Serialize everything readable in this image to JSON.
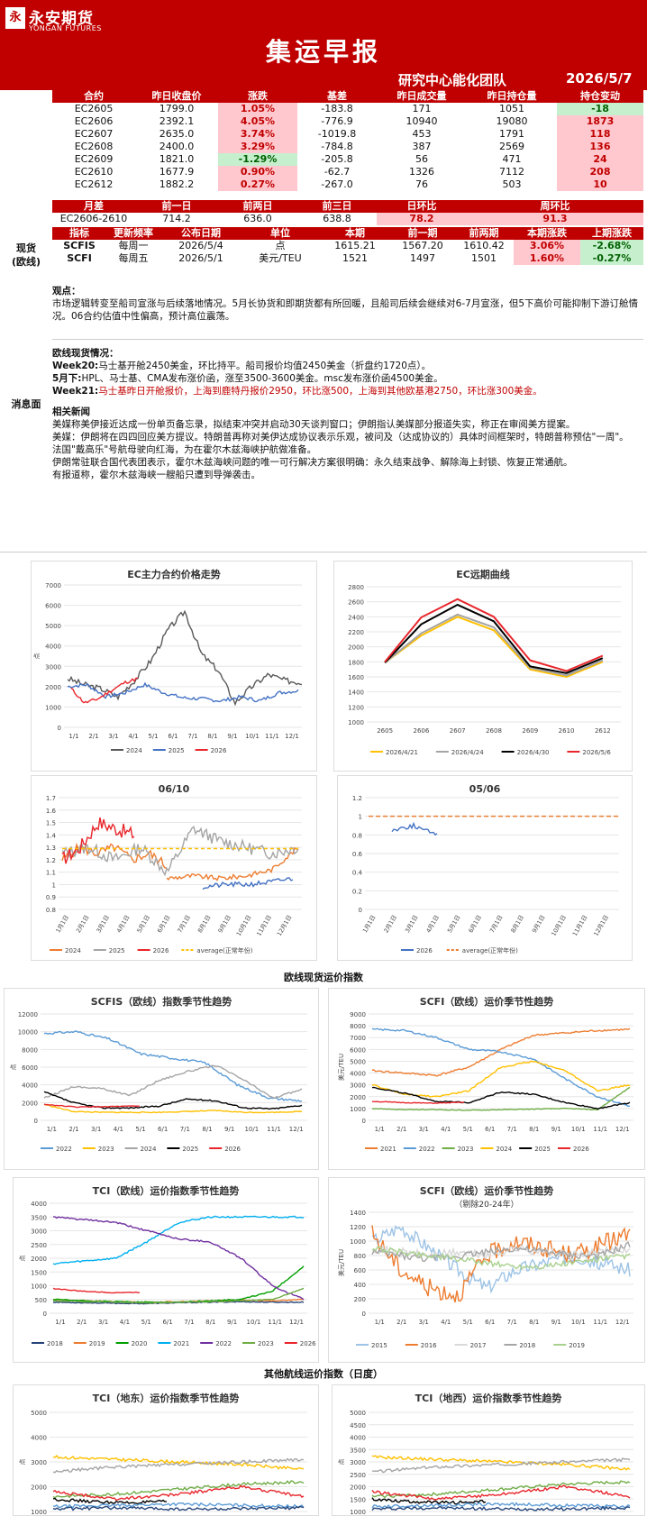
{
  "header": {
    "logo_mark": "永",
    "logo_cn": "永安期货",
    "logo_en": "YONGAN FUTURES",
    "title": "集运早报",
    "team": "研究中心能化团队",
    "date": "2026/5/7"
  },
  "contracts": {
    "columns": [
      "合约",
      "昨日收盘价",
      "涨跌",
      "基差",
      "昨日成交量",
      "昨日持仓量",
      "持仓变动"
    ],
    "rows": [
      [
        "EC2605",
        "1799.0",
        "1.05%",
        "-183.8",
        "171",
        "1051",
        "-18"
      ],
      [
        "EC2606",
        "2392.1",
        "4.05%",
        "-776.9",
        "10940",
        "19080",
        "1873"
      ],
      [
        "EC2607",
        "2635.0",
        "3.74%",
        "-1019.8",
        "453",
        "1791",
        "118"
      ],
      [
        "EC2608",
        "2400.0",
        "3.29%",
        "-784.8",
        "387",
        "2569",
        "136"
      ],
      [
        "EC2609",
        "1821.0",
        "-1.29%",
        "-205.8",
        "56",
        "471",
        "24"
      ],
      [
        "EC2610",
        "1677.9",
        "0.90%",
        "-62.7",
        "1326",
        "7112",
        "208"
      ],
      [
        "EC2612",
        "1882.2",
        "0.27%",
        "-267.0",
        "76",
        "503",
        "10"
      ]
    ],
    "change_colors": [
      "pink",
      "pink",
      "pink",
      "pink",
      "green",
      "pink",
      "pink"
    ],
    "oi_colors": [
      "green",
      "pink",
      "pink",
      "pink",
      "pink",
      "pink",
      "pink"
    ]
  },
  "spread": {
    "columns": [
      "月差",
      "前一日",
      "前两日",
      "前三日",
      "日环比",
      "周环比"
    ],
    "row": [
      "EC2606-2610",
      "714.2",
      "636.0",
      "638.8",
      "78.2",
      "91.3"
    ]
  },
  "spot": {
    "side_label": "现货\n(欧线)",
    "columns": [
      "指标",
      "更新频率",
      "公布日期",
      "单位",
      "本期",
      "前一期",
      "前两期",
      "本期涨跌",
      "上期涨跌"
    ],
    "rows": [
      [
        "SCFIS",
        "每周一",
        "2026/5/4",
        "点",
        "1615.21",
        "1567.20",
        "1610.42",
        "3.06%",
        "-2.68%"
      ],
      [
        "SCFI",
        "每周五",
        "2026/5/1",
        "美元/TEU",
        "1521",
        "1497",
        "1501",
        "1.60%",
        "-0.27%"
      ]
    ]
  },
  "news": {
    "side_label": "消息面",
    "view_title": "观点：",
    "view_text": "市场逻辑转变至船司宣涨与后续落地情况。5月长协货和即期货都有所回暖，且船司后续会继续对6-7月宣涨，但5下高价可能抑制下游订舱情况。06合约估值中性偏高，预计高位震荡。",
    "spot_title": "欧线现货情况：",
    "spot_lines": [
      {
        "tag": "Week20:",
        "text": "马士基开舱2450美金，环比持平。船司报价均值2450美金（折盘约1720点）。",
        "red": false
      },
      {
        "tag": "5月下:",
        "text": "HPL、马士基、CMA发布涨价函，涨至3500-3600美金。msc发布涨价函4500美金。",
        "red": false
      },
      {
        "tag": "Week21:",
        "text": "马士基昨日开舱报价，上海到鹿特丹报价2950，环比涨500，上海到其他欧基港2750，环比涨300美金。",
        "red": true
      }
    ],
    "related_title": "相关新闻",
    "related_lines": [
      "美媒称美伊接近达成一份单页备忘录，拟结束冲突并启动30天谈判窗口；伊朗指认美媒部分报道失实，称正在审阅美方提案。",
      "美媒：伊朗将在四四回应美方提议。特朗普再称对美伊达成协议表示乐观，被问及（达成协议的）具体时间框架时，特朗普称预估\"一周\"。",
      "法国\"戴高乐\"号航母驶向红海，为在霍尔木兹海峡护航做准备。",
      "伊朗常驻联合国代表团表示，霍尔木兹海峡问题的唯一可行解决方案很明确：永久结束战争、解除海上封锁、恢复正常通航。",
      "有报道称，霍尔木兹海峡一艘船只遭到导弹袭击。"
    ]
  },
  "sections": {
    "spot_index": "欧线现货运价指数",
    "other_routes": "其他航线运价指数（日度）"
  },
  "charts": {
    "c1": {
      "title": "EC主力合约价格走势",
      "yticks": [
        "7000",
        "6000",
        "5000",
        "4000",
        "3000",
        "2000",
        "1000",
        "0"
      ],
      "xticks": [
        "1/1",
        "2/1",
        "3/1",
        "4/1",
        "5/1",
        "6/1",
        "7/1",
        "8/1",
        "9/1",
        "10/1",
        "11/1",
        "12/1"
      ],
      "legend": [
        "2024",
        "2025",
        "2026"
      ],
      "colors": [
        "#595959",
        "#4472c4",
        "#e8262c"
      ],
      "ylabel": "点"
    },
    "c2": {
      "title": "EC远期曲线",
      "yticks": [
        "2800",
        "2600",
        "2400",
        "2200",
        "2000",
        "1800",
        "1600",
        "1400",
        "1200",
        "1000"
      ],
      "xticks": [
        "2605",
        "2606",
        "2607",
        "2608",
        "2609",
        "2610",
        "2612"
      ],
      "legend": [
        "2026/4/21",
        "2026/4/24",
        "2026/4/30",
        "2026/5/6"
      ],
      "colors": [
        "#ffc000",
        "#a5a5a5",
        "#000000",
        "#e8262c"
      ]
    },
    "c3": {
      "title": "06/10",
      "yticks": [
        "1.7",
        "1.6",
        "1.5",
        "1.4",
        "1.3",
        "1.2",
        "1.1",
        "1",
        "0.9",
        "0.8"
      ],
      "xticks": [
        "1月1日",
        "2月1日",
        "3月1日",
        "4月1日",
        "5月1日",
        "6月1日",
        "7月1日",
        "8月1日",
        "9月1日",
        "10月1日",
        "11月1日",
        "12月1日"
      ],
      "legend": [
        "2024",
        "2025",
        "2026",
        "average(正常年份)"
      ],
      "colors": [
        "#ed7d31",
        "#a5a5a5",
        "#e8262c",
        "#ffc000"
      ]
    },
    "c4": {
      "title": "05/06",
      "yticks": [
        "1.2",
        "1",
        "0.8",
        "0.6",
        "0.4",
        "0.2",
        "0"
      ],
      "xticks": [
        "1月1日",
        "2月1日",
        "3月1日",
        "4月1日",
        "5月1日",
        "6月1日",
        "7月1日",
        "8月1日",
        "9月1日",
        "10月1日",
        "11月1日",
        "12月1日"
      ],
      "legend": [
        "2026",
        "average(正常年份)"
      ],
      "colors": [
        "#4472c4",
        "#ed7d31"
      ]
    },
    "c5": {
      "title": "SCFIS（欧线）指数季节性趋势",
      "yticks": [
        "12000",
        "10000",
        "8000",
        "6000",
        "4000",
        "2000",
        "0"
      ],
      "xticks": [
        "1/1",
        "2/1",
        "3/1",
        "4/1",
        "5/1",
        "6/1",
        "7/1",
        "8/1",
        "9/1",
        "10/1",
        "11/1",
        "12/1"
      ],
      "legend": [
        "2022",
        "2023",
        "2024",
        "2025",
        "2026"
      ],
      "colors": [
        "#5b9bd5",
        "#ffc000",
        "#a5a5a5",
        "#000000",
        "#e8262c"
      ],
      "ylabel": "点"
    },
    "c6": {
      "title": "SCFI（欧线）运价季节性趋势",
      "yticks": [
        "9000",
        "8000",
        "7000",
        "6000",
        "5000",
        "4000",
        "3000",
        "2000",
        "1000",
        "0"
      ],
      "xticks": [
        "1/1",
        "2/1",
        "3/1",
        "4/1",
        "5/1",
        "6/1",
        "7/1",
        "8/1",
        "9/1",
        "10/1",
        "11/1",
        "12/1"
      ],
      "legend": [
        "2021",
        "2022",
        "2023",
        "2024",
        "2025",
        "2026"
      ],
      "colors": [
        "#ed7d31",
        "#5b9bd5",
        "#70ad47",
        "#ffc000",
        "#000000",
        "#e8262c"
      ],
      "ylabel": "美元/TEU"
    },
    "c7": {
      "title": "TCI（欧线）运价指数季节性趋势",
      "yticks": [
        "4000",
        "3500",
        "3000",
        "2500",
        "2000",
        "1500",
        "1000",
        "500",
        "0"
      ],
      "xticks": [
        "1/1",
        "2/1",
        "3/1",
        "4/1",
        "5/1",
        "6/1",
        "7/1",
        "8/1",
        "9/1",
        "10/1",
        "11/1",
        "12/1"
      ],
      "legend": [
        "2018",
        "2019",
        "2020",
        "2021",
        "2022",
        "2023",
        "2026"
      ],
      "colors": [
        "#264478",
        "#ed7d31",
        "#00a000",
        "#00b0f0",
        "#7030a0",
        "#70ad47",
        "#e8262c"
      ],
      "ylabel": "点"
    },
    "c8": {
      "title": "SCFI（欧线）运价季节性趋势",
      "subtitle": "（剔除20-24年）",
      "yticks": [
        "1400",
        "1200",
        "1000",
        "800",
        "600",
        "400",
        "200",
        "0"
      ],
      "xticks": [
        "1/1",
        "2/1",
        "3/1",
        "4/1",
        "5/1",
        "6/1",
        "7/1",
        "8/1",
        "9/1",
        "10/1",
        "11/1",
        "12/1"
      ],
      "legend": [
        "2015",
        "2016",
        "2017",
        "2018",
        "2019"
      ],
      "colors": [
        "#9dc3e6",
        "#ed7d31",
        "#d9d9d9",
        "#a5a5a5",
        "#a9d18e"
      ],
      "ylabel": "美元/TEU"
    },
    "c9": {
      "title": "TCI（地东）运价指数季节性趋势",
      "yticks": [
        "5000",
        "4000",
        "3000",
        "2000",
        "1000"
      ],
      "ylabel": "点"
    },
    "c10": {
      "title": "TCI（地西）运价指数季节性趋势",
      "yticks": [
        "5000",
        "4500",
        "4000",
        "3500",
        "3000",
        "2500",
        "2000",
        "1500",
        "1000"
      ],
      "ylabel": "点"
    }
  }
}
